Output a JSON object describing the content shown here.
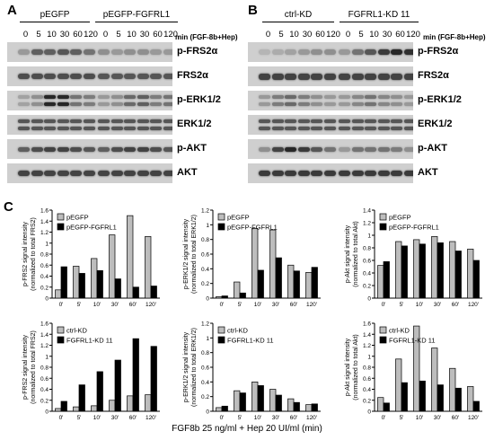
{
  "panelA": {
    "letter": "A",
    "groups": [
      "pEGFP",
      "pEGFP-FGFRL1"
    ],
    "timepoints": [
      "0",
      "5",
      "10",
      "30",
      "60",
      "120",
      "0",
      "5",
      "10",
      "30",
      "60",
      "120"
    ],
    "min_label": "min (FGF-8b+Hep)",
    "blots": [
      "p-FRS2α",
      "FRS2α",
      "p-ERK1/2",
      "ERK1/2",
      "p-AKT",
      "AKT"
    ]
  },
  "panelB": {
    "letter": "B",
    "groups": [
      "ctrl-KD",
      "FGFRL1-KD 11"
    ],
    "timepoints": [
      "0",
      "5",
      "10",
      "30",
      "60",
      "120",
      "0",
      "5",
      "10",
      "30",
      "60",
      "120"
    ],
    "min_label": "min (FGF-8b+Hep)",
    "blots": [
      "p-FRS2α",
      "FRS2α",
      "p-ERK1/2",
      "ERK1/2",
      "p-AKT",
      "AKT"
    ]
  },
  "panelC": {
    "letter": "C",
    "xlabel": "FGF8b 25 ng/ml + Hep 20 UI/ml (min)"
  },
  "chart_data": [
    {
      "type": "bar",
      "ylabel": "p-FRS2 signal intensity\n(normalized to total FRS2)",
      "categories": [
        "0'",
        "5'",
        "10'",
        "30'",
        "60'",
        "120'"
      ],
      "ylim": [
        0,
        1.6
      ],
      "yticks": [
        "0",
        "0.2",
        "0.4",
        "0.6",
        "0.8",
        "1",
        "1.2",
        "1.4",
        "1.6"
      ],
      "series": [
        {
          "name": "pEGFP",
          "values": [
            0.15,
            0.58,
            0.72,
            1.15,
            1.5,
            1.12
          ]
        },
        {
          "name": "pEGFP-FGFRL1",
          "values": [
            0.57,
            0.45,
            0.5,
            0.35,
            0.2,
            0.22
          ]
        }
      ]
    },
    {
      "type": "bar",
      "ylabel": "p-ERK1/2 signal intensity\n(normalized to total ERK1/2)",
      "categories": [
        "0'",
        "5'",
        "10'",
        "30'",
        "60'",
        "120'"
      ],
      "ylim": [
        0,
        1.2
      ],
      "yticks": [
        "0",
        "0.2",
        "0.4",
        "0.6",
        "0.8",
        "1",
        "1.2"
      ],
      "series": [
        {
          "name": "pEGFP",
          "values": [
            0.02,
            0.22,
            0.95,
            0.93,
            0.45,
            0.35
          ]
        },
        {
          "name": "pEGFP-FGFRL1",
          "values": [
            0.03,
            0.07,
            0.38,
            0.55,
            0.37,
            0.42
          ]
        }
      ]
    },
    {
      "type": "bar",
      "ylabel": "p-Akt signal intensity\n(normalized to total Akt)",
      "categories": [
        "0'",
        "5'",
        "10'",
        "30'",
        "60'",
        "120'"
      ],
      "ylim": [
        0,
        1.4
      ],
      "yticks": [
        "0",
        "0.2",
        "0.4",
        "0.6",
        "0.8",
        "1",
        "1.2",
        "1.4"
      ],
      "series": [
        {
          "name": "pEGFP",
          "values": [
            0.52,
            0.9,
            0.93,
            0.98,
            0.9,
            0.78
          ]
        },
        {
          "name": "pEGFP-FGFRL1",
          "values": [
            0.58,
            0.83,
            0.86,
            0.88,
            0.75,
            0.6
          ]
        }
      ]
    },
    {
      "type": "bar",
      "ylabel": "p-FRS2 signal intensity\n(normalized to total FRS2)",
      "categories": [
        "0'",
        "5'",
        "10'",
        "30'",
        "60'",
        "120'"
      ],
      "ylim": [
        0,
        1.6
      ],
      "yticks": [
        "0",
        "0.2",
        "0.4",
        "0.6",
        "0.8",
        "1",
        "1.2",
        "1.4",
        "1.6"
      ],
      "series": [
        {
          "name": "ctrl-KD",
          "values": [
            0.05,
            0.08,
            0.1,
            0.2,
            0.28,
            0.3
          ]
        },
        {
          "name": "FGFRL1-KD 11",
          "values": [
            0.18,
            0.48,
            0.72,
            0.93,
            1.32,
            1.18
          ]
        }
      ]
    },
    {
      "type": "bar",
      "ylabel": "p-ERK1/2 signal intensity\n(normalized to total ERK1/2)",
      "categories": [
        "0'",
        "5'",
        "10'",
        "30'",
        "60'",
        "120'"
      ],
      "ylim": [
        0,
        1.2
      ],
      "yticks": [
        "0",
        "0.2",
        "0.4",
        "0.6",
        "0.8",
        "1",
        "1.2"
      ],
      "series": [
        {
          "name": "ctrl-KD",
          "values": [
            0.05,
            0.28,
            0.4,
            0.3,
            0.17,
            0.09
          ]
        },
        {
          "name": "FGFRL1-KD 11",
          "values": [
            0.07,
            0.25,
            0.35,
            0.22,
            0.12,
            0.1
          ]
        }
      ]
    },
    {
      "type": "bar",
      "ylabel": "p-Akt signal intensity\n(normalized to total Akt)",
      "categories": [
        "0'",
        "5'",
        "10'",
        "30'",
        "60'",
        "120'"
      ],
      "ylim": [
        0,
        1.6
      ],
      "yticks": [
        "0",
        "0.2",
        "0.4",
        "0.6",
        "0.8",
        "1",
        "1.2",
        "1.4",
        "1.6"
      ],
      "series": [
        {
          "name": "ctrl-KD",
          "values": [
            0.25,
            0.95,
            1.55,
            1.15,
            0.78,
            0.45
          ]
        },
        {
          "name": "FGFRL1-KD 11",
          "values": [
            0.15,
            0.52,
            0.55,
            0.48,
            0.42,
            0.18
          ]
        }
      ]
    }
  ]
}
